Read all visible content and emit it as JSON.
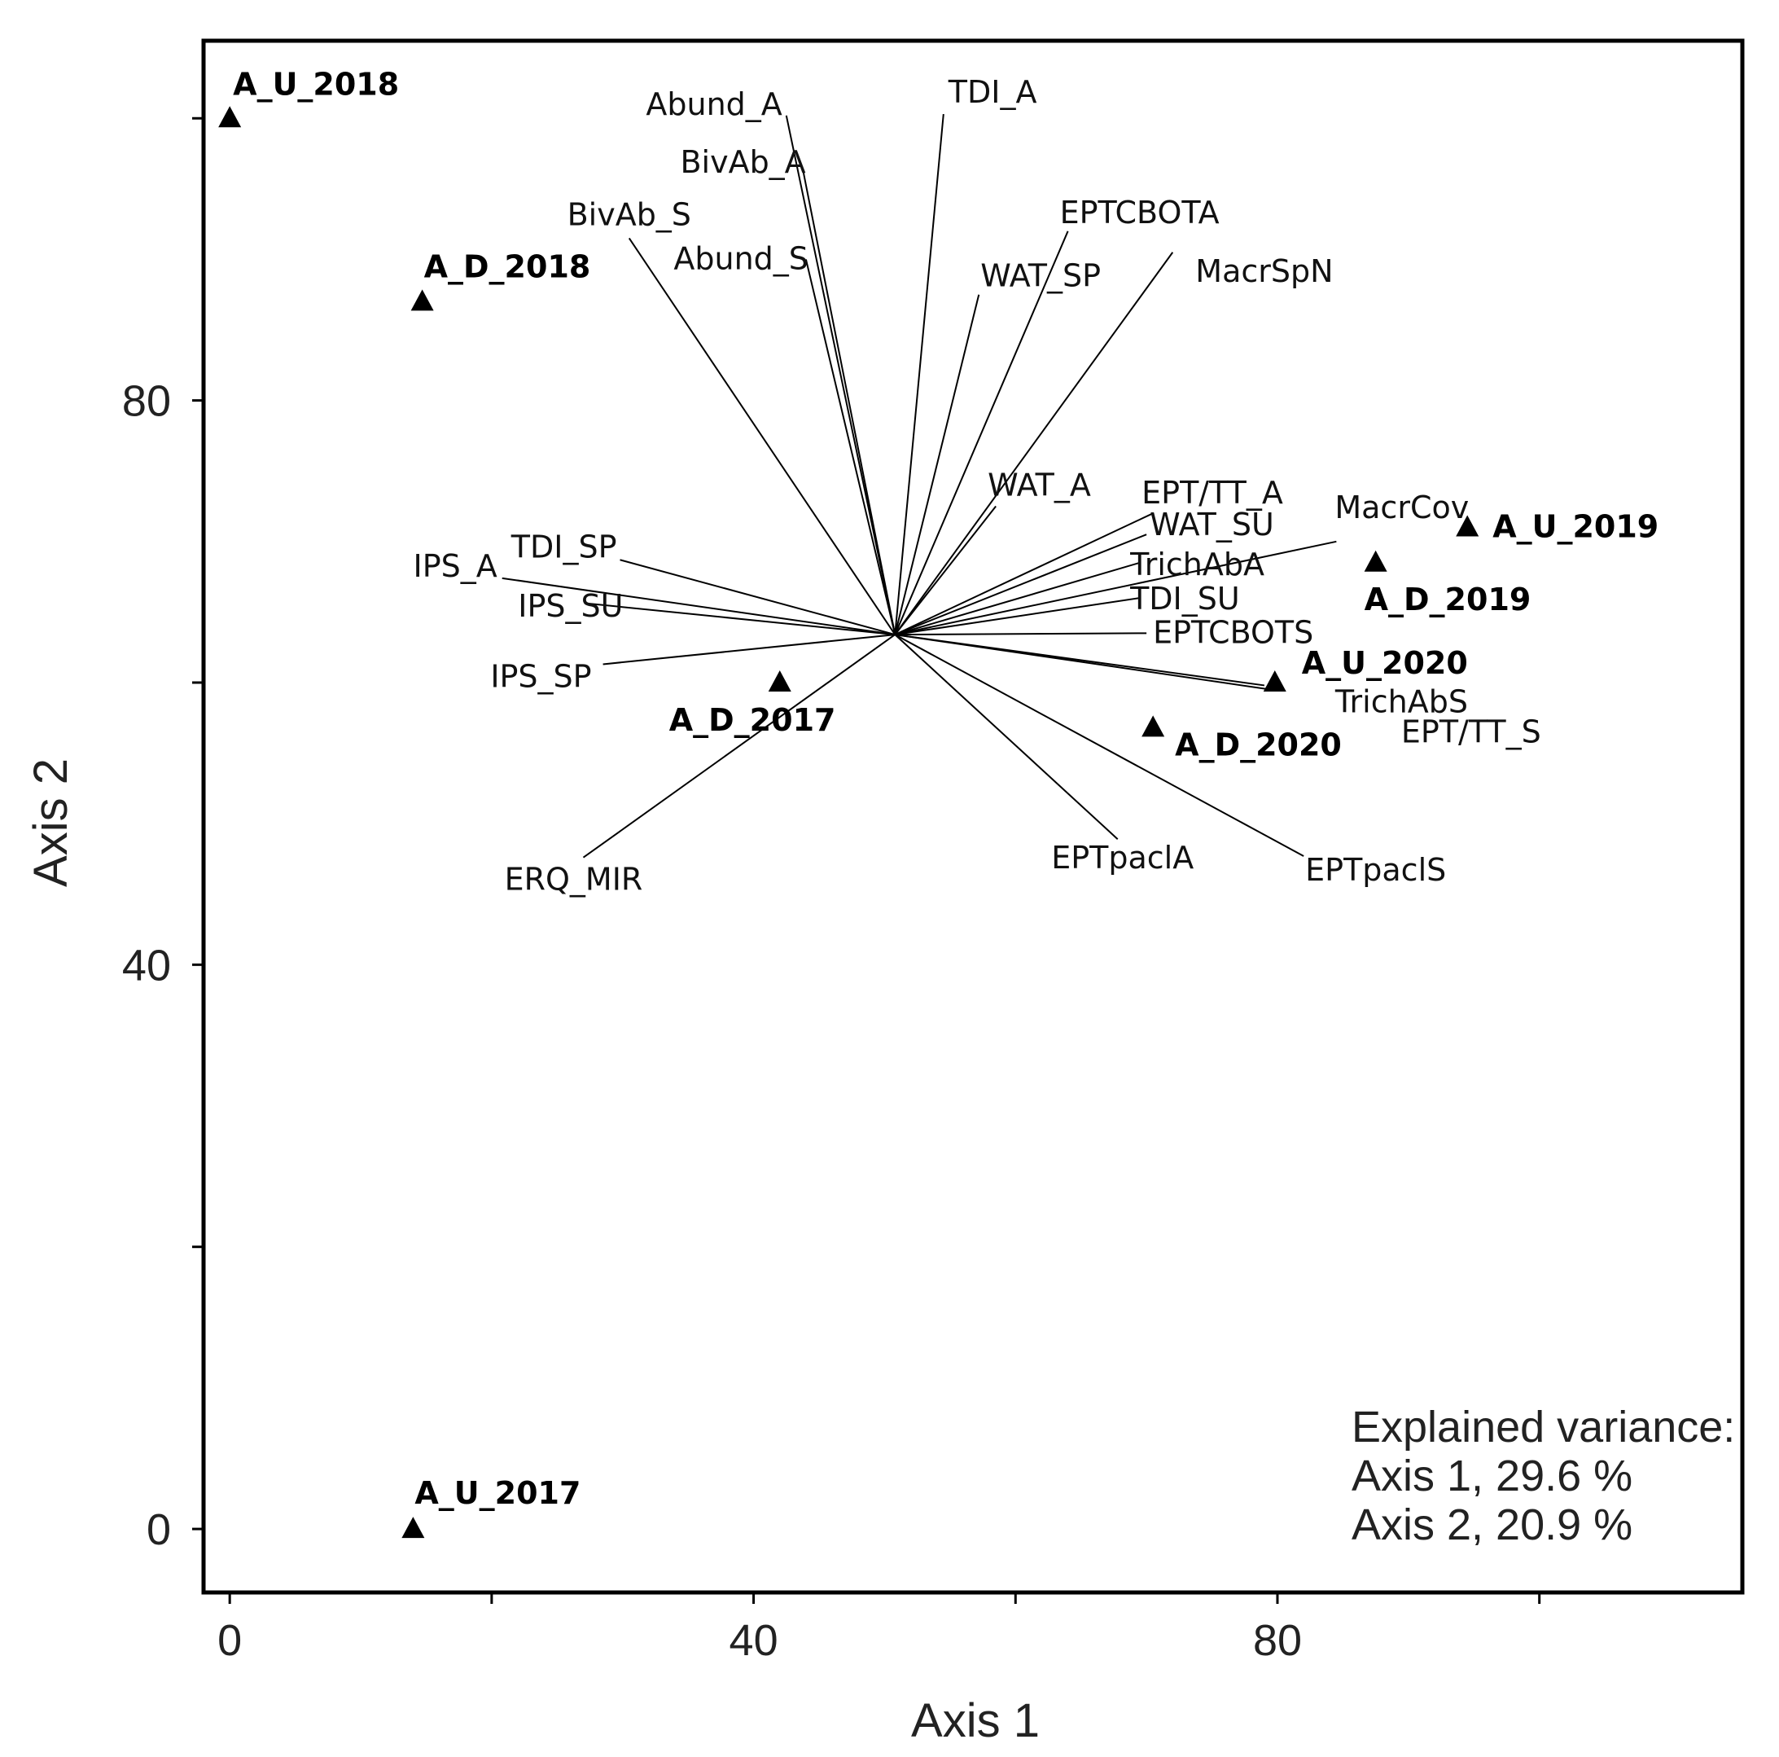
{
  "chart_data": {
    "type": "scatter",
    "subtype": "ordination-biplot",
    "xlabel": "Axis 1",
    "ylabel": "Axis 2",
    "xlim": [
      -2,
      115.5
    ],
    "ylim": [
      -4.5,
      105.5
    ],
    "xticks": [
      0,
      20,
      40,
      60,
      80,
      100
    ],
    "xtick_labels": [
      "0",
      "",
      "40",
      "",
      "80",
      ""
    ],
    "yticks": [
      0,
      20,
      40,
      60,
      80,
      100
    ],
    "ytick_labels": [
      "0",
      "",
      "40",
      "",
      "80",
      ""
    ],
    "origin": [
      50.8,
      63.4
    ],
    "sites": [
      {
        "name": "A_U_2018",
        "x": 0.0,
        "y": 100.0
      },
      {
        "name": "A_D_2018",
        "x": 14.7,
        "y": 87.0
      },
      {
        "name": "A_U_2019",
        "x": 94.5,
        "y": 71.0
      },
      {
        "name": "A_D_2019",
        "x": 87.5,
        "y": 68.5
      },
      {
        "name": "A_U_2020",
        "x": 79.8,
        "y": 60.0
      },
      {
        "name": "A_D_2020",
        "x": 70.5,
        "y": 56.8
      },
      {
        "name": "A_D_2017",
        "x": 42.0,
        "y": 60.0
      },
      {
        "name": "A_U_2017",
        "x": 14.0,
        "y": 0.0
      }
    ],
    "vectors": [
      {
        "name": "Abund_A",
        "x": 42.5,
        "y": 100.2
      },
      {
        "name": "BivAb_A",
        "x": 43.8,
        "y": 96.2
      },
      {
        "name": "BivAb_S",
        "x": 30.5,
        "y": 91.5
      },
      {
        "name": "Abund_S",
        "x": 44.0,
        "y": 90.0
      },
      {
        "name": "TDI_A",
        "x": 54.5,
        "y": 100.3
      },
      {
        "name": "EPTCBOTA",
        "x": 64.0,
        "y": 92.0
      },
      {
        "name": "WAT_SP",
        "x": 57.2,
        "y": 87.5
      },
      {
        "name": "MacrSpN",
        "x": 72.0,
        "y": 90.5
      },
      {
        "name": "WAT_A",
        "x": 58.5,
        "y": 72.5
      },
      {
        "name": "EPT/TT_A",
        "x": 70.5,
        "y": 72.0
      },
      {
        "name": "WAT_SU",
        "x": 70.0,
        "y": 70.5
      },
      {
        "name": "MacrCov",
        "x": 84.5,
        "y": 70.0
      },
      {
        "name": "TrichAbA",
        "x": 69.5,
        "y": 68.5
      },
      {
        "name": "TDI_SU",
        "x": 69.5,
        "y": 66.0
      },
      {
        "name": "EPTCBOTS",
        "x": 70.0,
        "y": 63.5
      },
      {
        "name": "TrichAbS",
        "x": 79.5,
        "y": 59.5
      },
      {
        "name": "EPT/TT_S",
        "x": 79.0,
        "y": 59.8
      },
      {
        "name": "EPTpaclA",
        "x": 67.8,
        "y": 48.9
      },
      {
        "name": "EPTpaclS",
        "x": 82.0,
        "y": 47.7
      },
      {
        "name": "TDI_SP",
        "x": 29.8,
        "y": 68.7
      },
      {
        "name": "IPS_A",
        "x": 20.8,
        "y": 67.4
      },
      {
        "name": "IPS_SU",
        "x": 27.4,
        "y": 65.6
      },
      {
        "name": "IPS_SP",
        "x": 28.5,
        "y": 61.3
      },
      {
        "name": "ERQ_MIR",
        "x": 27.0,
        "y": 47.6
      }
    ],
    "annotations": [
      "Explained variance:",
      "Axis 1, 29.6 %",
      "Axis 2, 20.9 %"
    ]
  }
}
